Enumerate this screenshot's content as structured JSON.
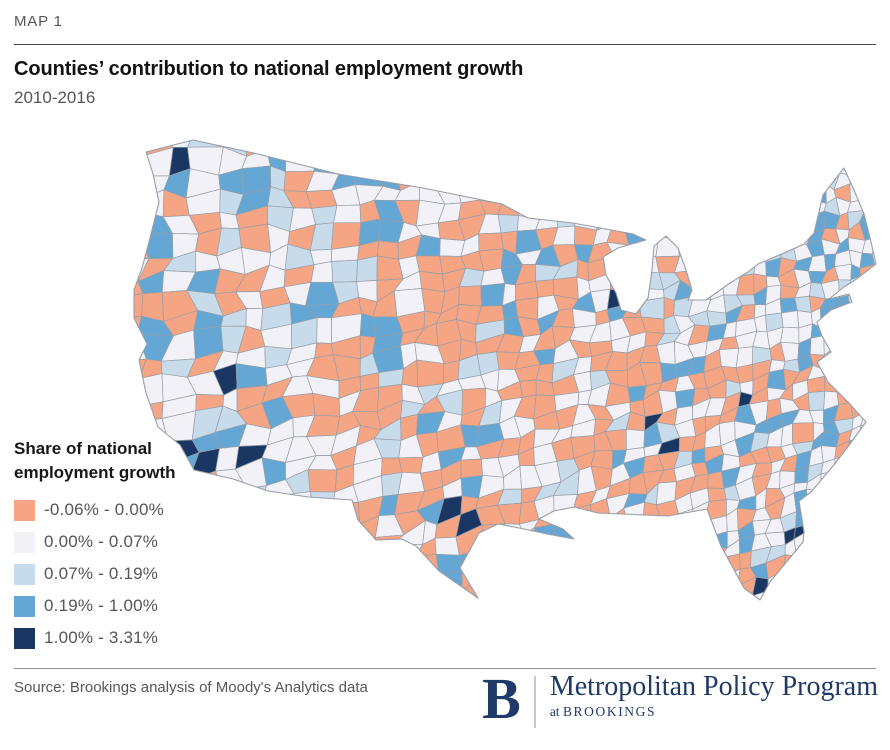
{
  "header": {
    "kicker": "MAP 1",
    "title": "Counties’ contribution to national employment growth",
    "subtitle": "2010-2016"
  },
  "legend": {
    "title_line1": "Share of national",
    "title_line2": "employment growth"
  },
  "chart_data": {
    "type": "choropleth",
    "region": "United States, county level",
    "title": "Counties’ contribution to national employment growth",
    "period": "2010-2016",
    "measure": "Share of national employment growth",
    "legend_position": "left-bottom",
    "classes": [
      {
        "label": "-0.06% - 0.00%",
        "min": -0.06,
        "max": 0.0,
        "color": "#F5A484"
      },
      {
        "label": "0.00% - 0.07%",
        "min": 0.0,
        "max": 0.07,
        "color": "#F1F1F7"
      },
      {
        "label": "0.07% - 0.19%",
        "min": 0.07,
        "max": 0.19,
        "color": "#C8DBEB"
      },
      {
        "label": "0.19% - 1.00%",
        "min": 0.19,
        "max": 1.0,
        "color": "#64A7D4"
      },
      {
        "label": "1.00% - 3.31%",
        "min": 1.0,
        "max": 3.31,
        "color": "#1A3763"
      }
    ],
    "class_shares_approx": [
      0.33,
      0.455,
      0.085,
      0.105,
      0.008
    ],
    "county_border_color": "#989ea7",
    "base_fill": "#F1F1F7"
  },
  "footer": {
    "source": "Source: Brookings analysis of Moody's Analytics data",
    "logo": {
      "letter": "B",
      "program": "Metropolitan Policy Program",
      "tagline_prefix": "at",
      "tagline_org": "BROOKINGS",
      "color": "#1f3a68"
    }
  }
}
